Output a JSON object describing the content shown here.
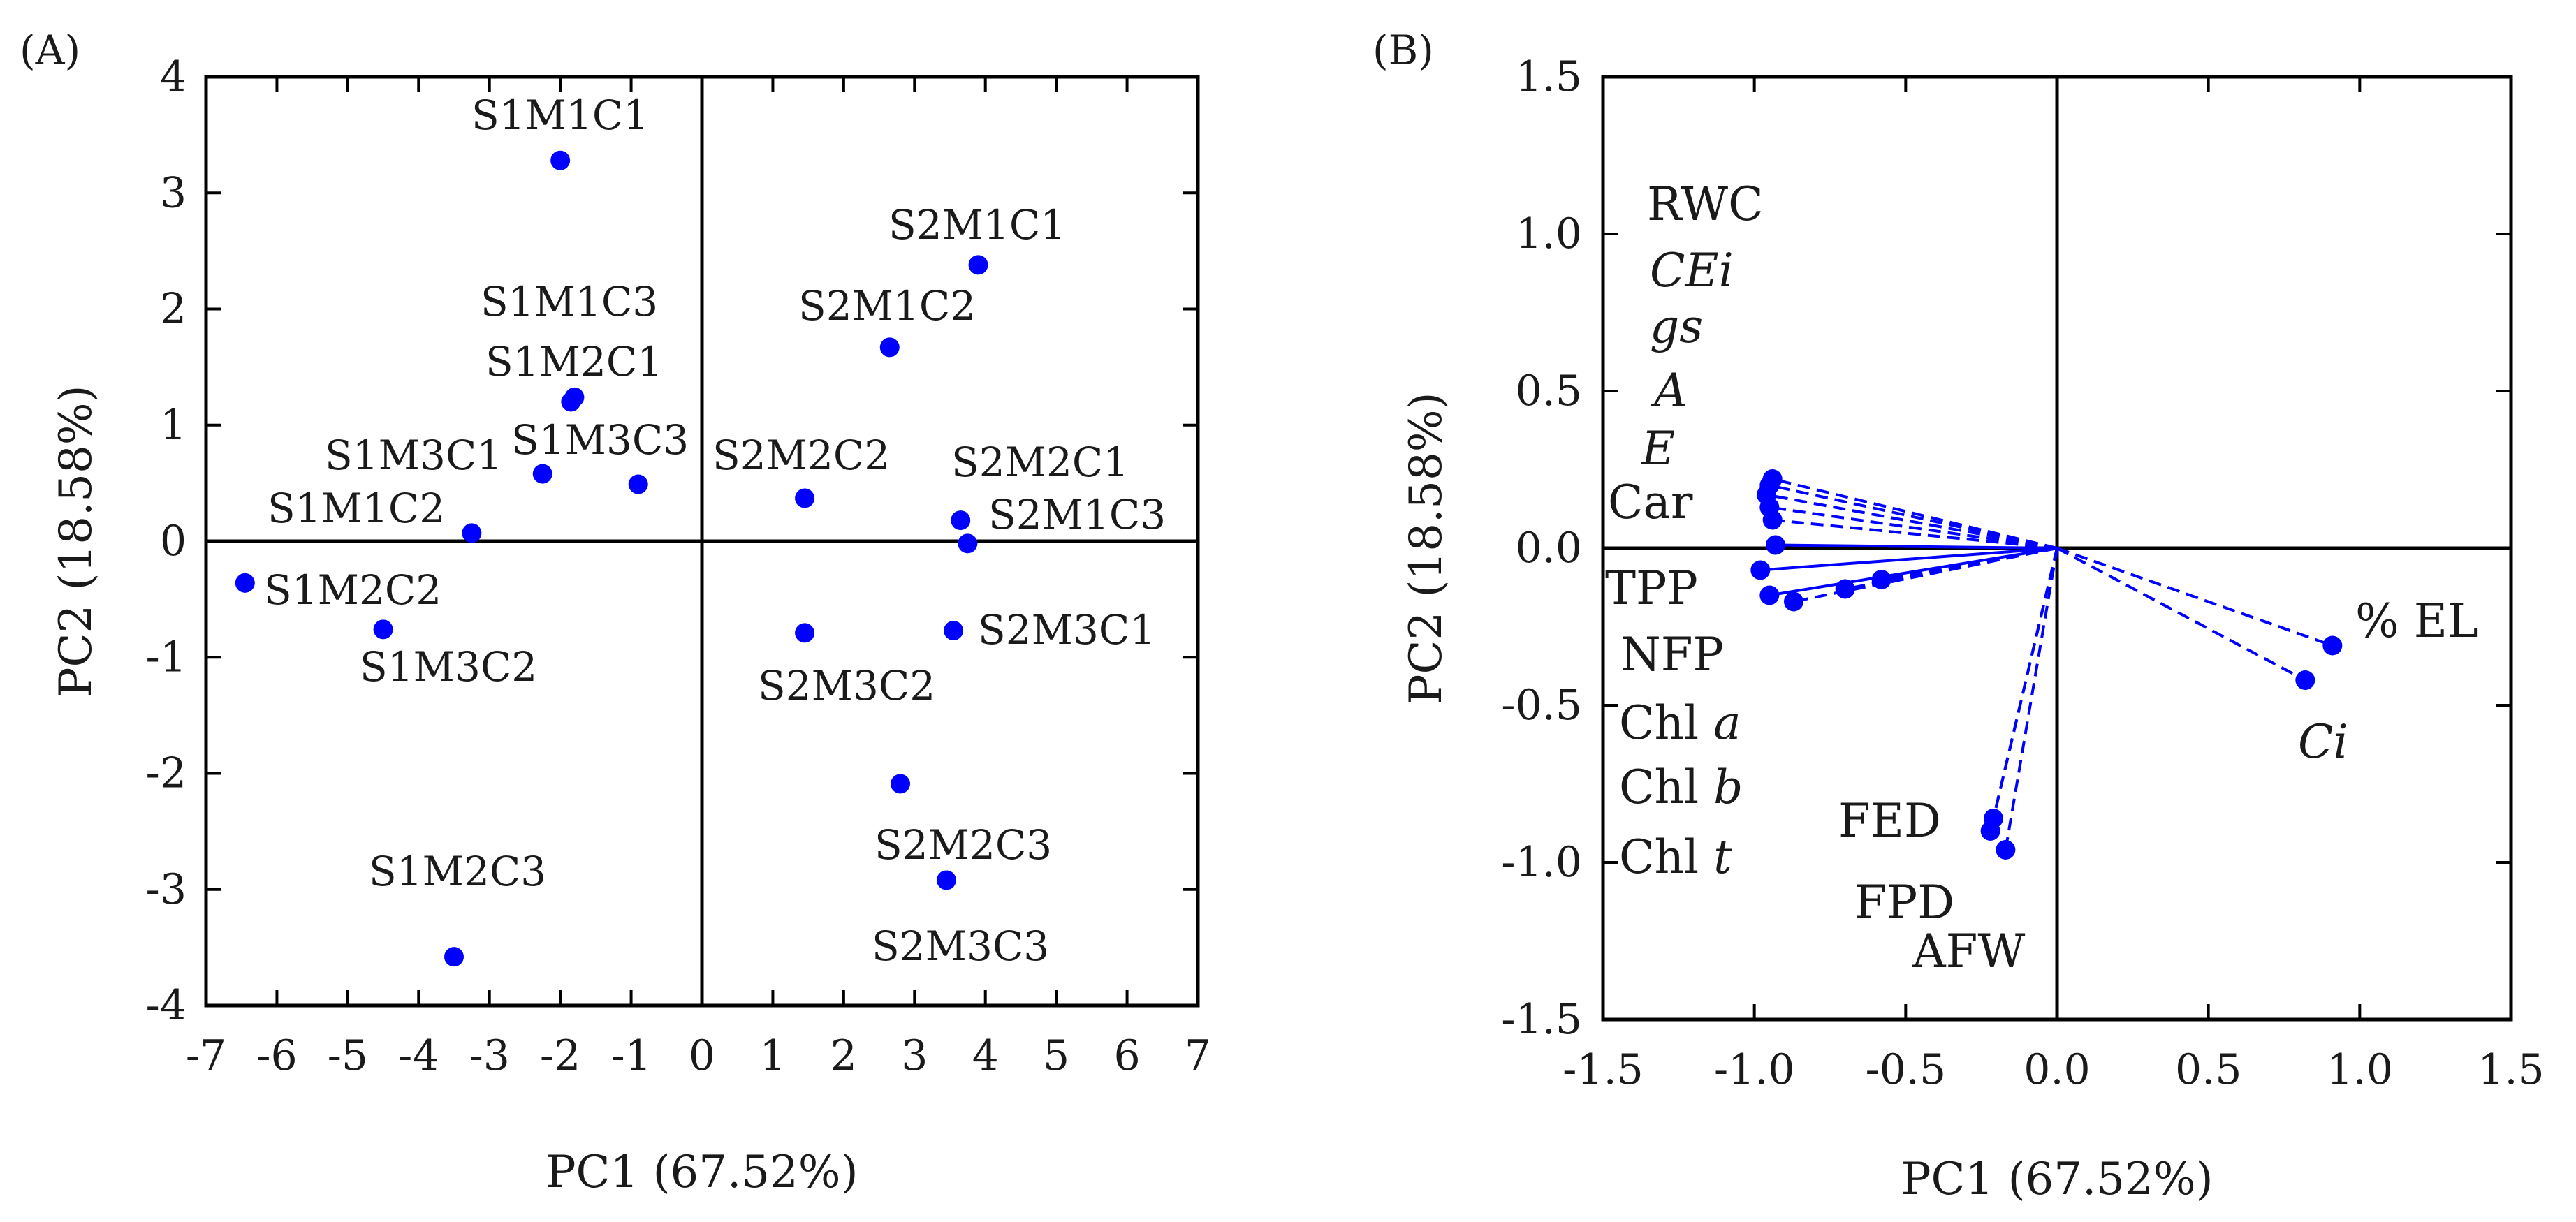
{
  "colors": {
    "points": "#0000ff",
    "axes": "#000000",
    "text": "#1a1a1a"
  },
  "chart_data": [
    {
      "type": "scatter",
      "panel_label": "(A)",
      "xlabel": "PC1 (67.52%)",
      "ylabel": "PC2 (18.58%)",
      "xlim": [
        -7,
        7
      ],
      "ylim": [
        -4,
        4
      ],
      "xticks": [
        -7,
        -6,
        -5,
        -4,
        -3,
        -2,
        -1,
        0,
        1,
        2,
        3,
        4,
        5,
        6,
        7
      ],
      "yticks": [
        -4,
        -3,
        -2,
        -1,
        0,
        1,
        2,
        3,
        4
      ],
      "grid": false,
      "zero_lines": true,
      "points": [
        {
          "label": "S1M1C1",
          "x": -2.0,
          "y": 3.28
        },
        {
          "label": "S1M1C3",
          "x": -1.8,
          "y": 1.24
        },
        {
          "label": "S1M2C1",
          "x": -1.85,
          "y": 1.2
        },
        {
          "label": "S1M3C1",
          "x": -2.25,
          "y": 0.58
        },
        {
          "label": "S1M3C3",
          "x": -0.9,
          "y": 0.49
        },
        {
          "label": "S1M1C2",
          "x": -3.25,
          "y": 0.07
        },
        {
          "label": "S1M2C2",
          "x": -6.45,
          "y": -0.36
        },
        {
          "label": "S1M3C2",
          "x": -4.5,
          "y": -0.76
        },
        {
          "label": "S1M2C3",
          "x": -3.5,
          "y": -3.58
        },
        {
          "label": "S2M1C1",
          "x": 3.9,
          "y": 2.38
        },
        {
          "label": "S2M1C2",
          "x": 2.65,
          "y": 1.67
        },
        {
          "label": "S2M2C2",
          "x": 1.45,
          "y": 0.37
        },
        {
          "label": "S2M2C1",
          "x": 3.65,
          "y": 0.18
        },
        {
          "label": "S2M1C3",
          "x": 3.75,
          "y": -0.02
        },
        {
          "label": "S2M3C1",
          "x": 3.55,
          "y": -0.77
        },
        {
          "label": "S2M3C2",
          "x": 1.45,
          "y": -0.79
        },
        {
          "label": "S2M2C3",
          "x": 2.8,
          "y": -2.09
        },
        {
          "label": "S2M3C3",
          "x": 3.45,
          "y": -2.92
        }
      ]
    },
    {
      "type": "biplot",
      "panel_label": "(B)",
      "xlabel": "PC1 (67.52%)",
      "ylabel": "PC2 (18.58%)",
      "xlim": [
        -1.5,
        1.5
      ],
      "ylim": [
        -1.5,
        1.5
      ],
      "xticks": [
        "-1.5",
        "-1.0",
        "-0.5",
        "0.0",
        "0.5",
        "1.0",
        "1.5"
      ],
      "yticks": [
        "-1.5",
        "-1.0",
        "-0.5",
        "0.0",
        "0.5",
        "1.0",
        "1.5"
      ],
      "grid": false,
      "zero_lines": true,
      "vectors": [
        {
          "label": "RWC",
          "italic": false,
          "x": -0.94,
          "y": 0.22,
          "style": "dashed"
        },
        {
          "label": "CEi",
          "italic": true,
          "x": -0.95,
          "y": 0.2,
          "style": "dashed"
        },
        {
          "label": "gs",
          "italic": true,
          "x": -0.96,
          "y": 0.17,
          "style": "dashed"
        },
        {
          "label": "A",
          "italic": true,
          "x": -0.95,
          "y": 0.13,
          "style": "dashed"
        },
        {
          "label": "E",
          "italic": true,
          "x": -0.94,
          "y": 0.09,
          "style": "dashed"
        },
        {
          "label": "Car",
          "italic": false,
          "x": -0.93,
          "y": 0.01,
          "style": "solid"
        },
        {
          "label": "TPP",
          "italic": false,
          "x": -0.98,
          "y": -0.07,
          "style": "solid"
        },
        {
          "label": "NFP",
          "italic": false,
          "x": -0.95,
          "y": -0.15,
          "style": "solid"
        },
        {
          "label": "Chl a",
          "text": "Chl ",
          "italic_part": "a",
          "x": -0.87,
          "y": -0.17,
          "style": "dashed"
        },
        {
          "label": "Chl b",
          "text": "Chl ",
          "italic_part": "b",
          "x": -0.7,
          "y": -0.13,
          "style": "dashed"
        },
        {
          "label": "Chl t",
          "text": "Chl ",
          "italic_part": "t",
          "x": -0.58,
          "y": -0.1,
          "style": "dashed"
        },
        {
          "label": "FED",
          "italic": false,
          "x": -0.21,
          "y": -0.86,
          "style": "dashed"
        },
        {
          "label": "FPD",
          "italic": false,
          "x": -0.22,
          "y": -0.9,
          "style": "dashed"
        },
        {
          "label": "AFW",
          "italic": false,
          "x": -0.17,
          "y": -0.96,
          "style": "dashed"
        },
        {
          "label": "% EL",
          "italic": false,
          "x": 0.91,
          "y": -0.31,
          "style": "dashed"
        },
        {
          "label": "Ci",
          "italic": true,
          "x": 0.82,
          "y": -0.42,
          "style": "dashed"
        }
      ],
      "variable_labels": [
        "RWC",
        "CEi",
        "gs",
        "A",
        "E",
        "Car",
        "TPP",
        "NFP",
        "Chl a",
        "Chl b",
        "Chl t",
        "FED",
        "FPD",
        "AFW",
        "% EL",
        "Ci"
      ]
    }
  ]
}
